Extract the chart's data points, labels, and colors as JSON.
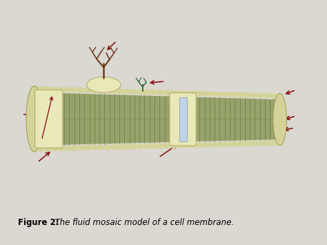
{
  "bg_color": "#dbd8d2",
  "page_color": "#e8e5df",
  "caption_bold": "Figure 2:",
  "caption_italic": "  The fluid mosaic model of a cell membrane.",
  "caption_fontsize": 8.5,
  "head_color": "#d4d49a",
  "head_edge": "#9a9a50",
  "tail_color": "#8a9a5a",
  "tail_edge": "#6a7a3a",
  "protein_fill": "#e8e8b8",
  "protein_edge": "#b8a860",
  "channel_fill": "#c0d4e8",
  "channel_edge": "#8090a0",
  "glycan_brown": "#6b3a1a",
  "glycan_green": "#2a6b3a",
  "arrow_color": "#8b1515",
  "membrane_outline": "#7a8a4a",
  "interior_line": "#6a7a3a"
}
